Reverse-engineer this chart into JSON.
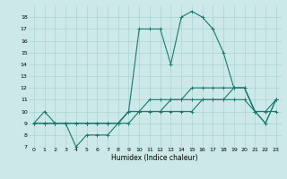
{
  "xlabel": "Humidex (Indice chaleur)",
  "bg_color": "#cce8e8",
  "grid_color": "#aad4d4",
  "line_color": "#1a7a6e",
  "xlim": [
    -0.5,
    23.5
  ],
  "ylim": [
    7,
    19
  ],
  "yticks": [
    7,
    8,
    9,
    10,
    11,
    12,
    13,
    14,
    15,
    16,
    17,
    18
  ],
  "xticks": [
    0,
    1,
    2,
    3,
    4,
    5,
    6,
    7,
    8,
    9,
    10,
    11,
    12,
    13,
    14,
    15,
    16,
    17,
    18,
    19,
    20,
    21,
    22,
    23
  ],
  "series": [
    {
      "x": [
        0,
        1,
        2,
        3,
        4,
        5,
        6,
        7,
        8,
        9,
        10,
        11,
        12,
        13,
        14,
        15,
        16,
        17,
        18,
        19,
        20,
        21,
        22,
        23
      ],
      "y": [
        9,
        10,
        9,
        9,
        7,
        8,
        8,
        8,
        9,
        10,
        17,
        17,
        17,
        14,
        18,
        18.5,
        18,
        17,
        15,
        12,
        12,
        10,
        9,
        11
      ]
    },
    {
      "x": [
        0,
        1,
        2,
        3,
        4,
        5,
        6,
        7,
        8,
        9,
        10,
        11,
        12,
        13,
        14,
        15,
        16,
        17,
        18,
        19,
        20,
        21,
        22,
        23
      ],
      "y": [
        9,
        9,
        9,
        9,
        9,
        9,
        9,
        9,
        9,
        9,
        10,
        10,
        10,
        10,
        10,
        10,
        11,
        11,
        11,
        11,
        11,
        10,
        10,
        10
      ]
    },
    {
      "x": [
        0,
        1,
        2,
        3,
        4,
        5,
        6,
        7,
        8,
        9,
        10,
        11,
        12,
        13,
        14,
        15,
        16,
        17,
        18,
        19,
        20,
        21,
        22,
        23
      ],
      "y": [
        9,
        9,
        9,
        9,
        9,
        9,
        9,
        9,
        9,
        10,
        10,
        10,
        10,
        11,
        11,
        11,
        11,
        11,
        11,
        12,
        12,
        10,
        10,
        11
      ]
    },
    {
      "x": [
        0,
        1,
        2,
        3,
        4,
        5,
        6,
        7,
        8,
        9,
        10,
        11,
        12,
        13,
        14,
        15,
        16,
        17,
        18,
        19,
        20,
        21,
        22,
        23
      ],
      "y": [
        9,
        9,
        9,
        9,
        9,
        9,
        9,
        9,
        9,
        10,
        10,
        11,
        11,
        11,
        11,
        12,
        12,
        12,
        12,
        12,
        12,
        10,
        9,
        11
      ]
    }
  ]
}
